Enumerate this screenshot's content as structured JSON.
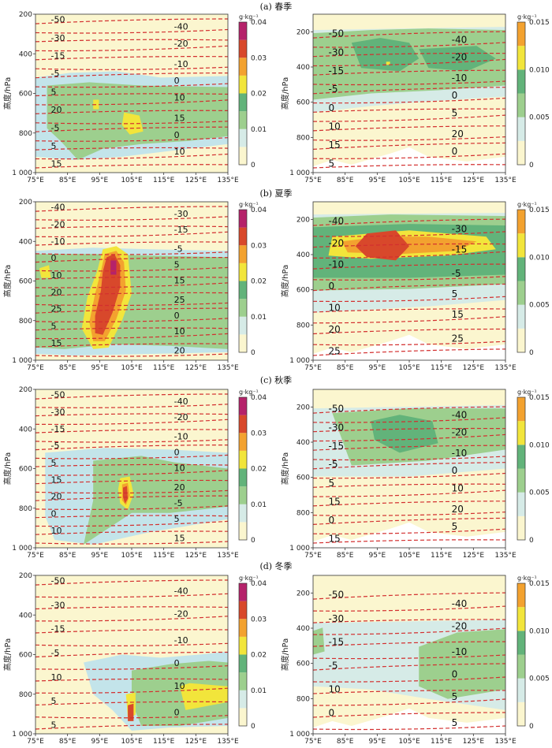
{
  "figure": {
    "panel_titles": [
      "(a) 春季",
      "(b) 夏季",
      "(c) 秋季",
      "(d) 冬季"
    ],
    "y_label": "高度/hPa",
    "x_ticks": [
      "75°E",
      "85°E",
      "95°E",
      "105°E",
      "115°E",
      "125°E",
      "135°E"
    ],
    "y_ticks": [
      "200",
      "400",
      "600",
      "800",
      "1 000"
    ],
    "colorbar_unit": "g·kg⁻¹"
  },
  "colors": {
    "contour_line": "#d32f2f",
    "c0": "#fbf6cf",
    "c1": "#d6ebe7",
    "c2": "#c3e4ea",
    "c3": "#9dcf8e",
    "c4": "#62b37a",
    "c5": "#f2e53b",
    "c6": "#f3a22f",
    "c7": "#d8482b",
    "c8": "#b5226a",
    "c9": "#e088c6"
  },
  "chart_data": [
    {
      "type": "heatmap",
      "season": "春季",
      "side": "left",
      "x_range": [
        75,
        135
      ],
      "y_range": [
        200,
        1000
      ],
      "y_axis_ticks": [
        "200",
        "400",
        "600",
        "800",
        "1 000"
      ],
      "colorbar": {
        "unit": "g·kg⁻¹",
        "ticks": [
          "0",
          "0.01",
          "0.02",
          "0.03",
          "0.04"
        ],
        "levels": [
          0,
          0.005,
          0.01,
          0.015,
          0.02,
          0.025,
          0.03,
          0.035,
          0.04
        ]
      },
      "contour_labels": [
        "-50",
        "-40",
        "-30",
        "-20",
        "-15",
        "-10",
        "-5",
        "0",
        "5",
        "10",
        "20",
        "15",
        "-5",
        "0",
        "5",
        "10",
        "15"
      ]
    },
    {
      "type": "heatmap",
      "season": "春季",
      "side": "right",
      "x_range": [
        75,
        135
      ],
      "y_range": [
        100,
        1000
      ],
      "y_axis_ticks": [
        "200",
        "400",
        "600",
        "800",
        "1 000"
      ],
      "colorbar": {
        "unit": "g·kg⁻¹",
        "ticks": [
          "0",
          "0.005",
          "0.010",
          "0.015"
        ],
        "levels": [
          0,
          0.0025,
          0.005,
          0.0075,
          0.01,
          0.0125,
          0.015
        ]
      },
      "contour_labels": [
        "-50",
        "-40",
        "-30",
        "-20",
        "-15",
        "-10",
        "-5",
        "0",
        "0",
        "5",
        "10",
        "20",
        "15",
        "0",
        "5"
      ]
    },
    {
      "type": "heatmap",
      "season": "夏季",
      "side": "left",
      "x_range": [
        75,
        135
      ],
      "y_range": [
        200,
        1000
      ],
      "y_axis_ticks": [
        "200",
        "400",
        "600",
        "800",
        "1 000"
      ],
      "colorbar": {
        "unit": "g·kg⁻¹",
        "ticks": [
          "0",
          "0.01",
          "0.02",
          "0.03",
          "0.04"
        ],
        "levels": [
          0,
          0.005,
          0.01,
          0.015,
          0.02,
          0.025,
          0.03,
          0.035,
          0.04
        ]
      },
      "contour_labels": [
        "-40",
        "-30",
        "-20",
        "-15",
        "-10",
        "-5",
        "0",
        "5",
        "10",
        "15",
        "20",
        "25",
        "25",
        "0",
        "5",
        "10",
        "15",
        "20"
      ]
    },
    {
      "type": "heatmap",
      "season": "夏季",
      "side": "right",
      "x_range": [
        75,
        135
      ],
      "y_range": [
        100,
        1000
      ],
      "y_axis_ticks": [
        "200",
        "400",
        "600",
        "800",
        "1 000"
      ],
      "colorbar": {
        "unit": "g·kg⁻¹",
        "ticks": [
          "0",
          "0.005",
          "0.010",
          "0.015"
        ],
        "levels": [
          0,
          0.0025,
          0.005,
          0.0075,
          0.01,
          0.0125,
          0.015
        ]
      },
      "contour_labels": [
        "-40",
        "-30",
        "-20",
        "-15",
        "-10",
        "-5",
        "0",
        "5",
        "10",
        "15",
        "20",
        "25",
        "25"
      ]
    },
    {
      "type": "heatmap",
      "season": "秋季",
      "side": "left",
      "x_range": [
        75,
        135
      ],
      "y_range": [
        200,
        1000
      ],
      "y_axis_ticks": [
        "200",
        "400",
        "600",
        "800",
        "1 000"
      ],
      "colorbar": {
        "unit": "g·kg⁻¹",
        "ticks": [
          "0",
          "0.01",
          "0.02",
          "0.03",
          "0.04"
        ],
        "levels": [
          0,
          0.005,
          0.01,
          0.015,
          0.02,
          0.025,
          0.03,
          0.035,
          0.04
        ]
      },
      "contour_labels": [
        "-50",
        "-40",
        "-30",
        "-20",
        "-15",
        "-10",
        "-5",
        "0",
        "5",
        "10",
        "15",
        "20",
        "20",
        "-5",
        "0",
        "5",
        "10",
        "15"
      ]
    },
    {
      "type": "heatmap",
      "season": "秋季",
      "side": "right",
      "x_range": [
        75,
        135
      ],
      "y_range": [
        100,
        1000
      ],
      "y_axis_ticks": [
        "200",
        "400",
        "600",
        "800",
        "1 000"
      ],
      "colorbar": {
        "unit": "g·kg⁻¹",
        "ticks": [
          "0",
          "0.005",
          "0.010",
          "0.015"
        ],
        "levels": [
          0,
          0.0025,
          0.005,
          0.0075,
          0.01,
          0.0125,
          0.015
        ]
      },
      "contour_labels": [
        "-50",
        "-40",
        "-30",
        "-20",
        "-15",
        "-10",
        "-5",
        "0",
        "5",
        "10",
        "15",
        "20",
        "0",
        "5",
        "15"
      ]
    },
    {
      "type": "heatmap",
      "season": "冬季",
      "side": "left",
      "x_range": [
        75,
        135
      ],
      "y_range": [
        200,
        1000
      ],
      "y_axis_ticks": [
        "200",
        "400",
        "600",
        "800",
        "1 000"
      ],
      "colorbar": {
        "unit": "g·kg⁻¹",
        "ticks": [
          "0",
          "0.01",
          "0.02",
          "0.03",
          "0.04"
        ],
        "levels": [
          0,
          0.005,
          0.01,
          0.015,
          0.02,
          0.025,
          0.03,
          0.035,
          0.04
        ]
      },
      "contour_labels": [
        "-50",
        "-40",
        "-30",
        "-20",
        "-15",
        "-10",
        "-5",
        "0",
        "10",
        "10",
        "5",
        "0",
        "5"
      ]
    },
    {
      "type": "heatmap",
      "season": "冬季",
      "side": "right",
      "x_range": [
        75,
        135
      ],
      "y_range": [
        100,
        1000
      ],
      "y_axis_ticks": [
        "200",
        "400",
        "600",
        "800",
        "1 000"
      ],
      "colorbar": {
        "unit": "g·kg⁻¹",
        "ticks": [
          "0",
          "0.005",
          "0.010",
          "0.015"
        ],
        "levels": [
          0,
          0.0025,
          0.005,
          0.0075,
          0.01,
          0.0125,
          0.015
        ]
      },
      "contour_labels": [
        "-50",
        "-40",
        "-30",
        "-20",
        "-15",
        "-10",
        "-5",
        "0",
        "10",
        "5",
        "0",
        "5"
      ]
    }
  ]
}
